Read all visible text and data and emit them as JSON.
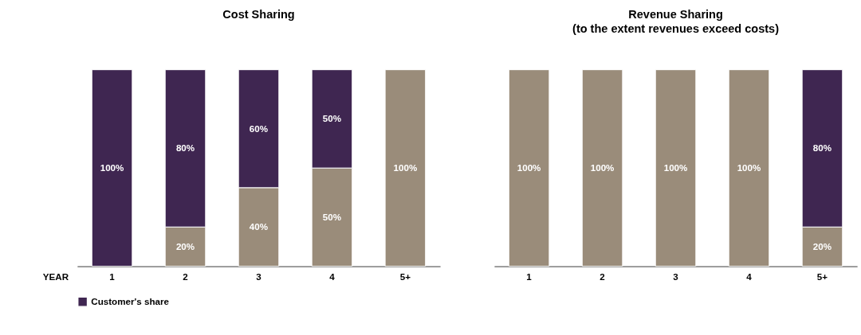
{
  "chart_data": [
    {
      "type": "bar",
      "title": "Cost Sharing",
      "xlabel": "YEAR",
      "categories": [
        "1",
        "2",
        "3",
        "4",
        "5+"
      ],
      "stacked": true,
      "legend": "bottom left",
      "tick_labels": "x",
      "series": [
        {
          "color": "#9a8c7a",
          "values": [
            null,
            20,
            40,
            50,
            100
          ],
          "value_labels": [
            null,
            "20%",
            "40%",
            "50%",
            "100%"
          ]
        },
        {
          "name": "Customer's share",
          "color": "#3f2651",
          "values": [
            100,
            80,
            60,
            50,
            null
          ],
          "value_labels": [
            "100%",
            "80%",
            "60%",
            "50%",
            null
          ]
        }
      ]
    },
    {
      "type": "bar",
      "title": "Revenue Sharing",
      "subtitle": "(to the extent revenues exceed costs)",
      "categories": [
        "1",
        "2",
        "3",
        "4",
        "5+"
      ],
      "stacked": true,
      "tick_labels": "x",
      "series": [
        {
          "color": "#9a8c7a",
          "values": [
            100,
            100,
            100,
            100,
            20
          ],
          "value_labels": [
            "100%",
            "100%",
            "100%",
            "100%",
            "20%"
          ]
        },
        {
          "color": "#3f2651",
          "values": [
            null,
            null,
            null,
            null,
            80
          ],
          "value_labels": [
            null,
            null,
            null,
            null,
            "80%"
          ]
        }
      ]
    }
  ]
}
